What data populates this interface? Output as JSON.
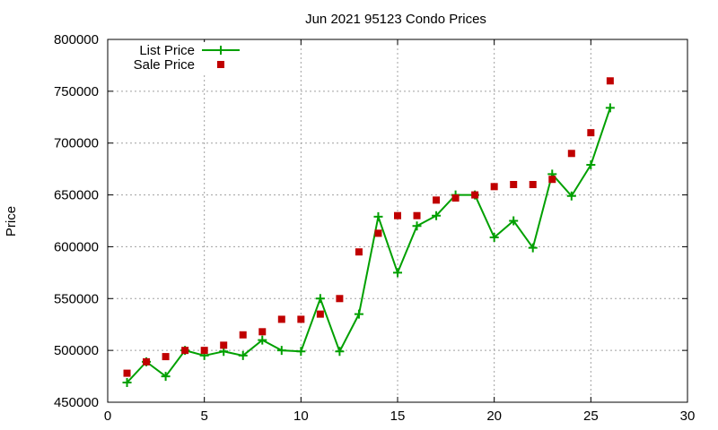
{
  "chart_data": {
    "type": "line",
    "title": "Jun 2021 95123 Condo Prices",
    "xlabel": "",
    "ylabel": "Price",
    "xlim": [
      0,
      30
    ],
    "ylim": [
      450000,
      800000
    ],
    "x_ticks": [
      0,
      5,
      10,
      15,
      20,
      25,
      30
    ],
    "y_ticks": [
      450000,
      500000,
      550000,
      600000,
      650000,
      700000,
      750000,
      800000
    ],
    "x_tick_labels": [
      "0",
      "5",
      "10",
      "15",
      "20",
      "25",
      "30"
    ],
    "y_tick_labels": [
      "450000",
      "500000",
      "550000",
      "600000",
      "650000",
      "700000",
      "750000",
      "800000"
    ],
    "grid": true,
    "legend_position": "top-left",
    "series": [
      {
        "name": "List Price",
        "kind": "line-with-plus-markers",
        "color": "#00a000",
        "x": [
          1,
          2,
          3,
          4,
          5,
          6,
          7,
          8,
          9,
          10,
          11,
          12,
          13,
          14,
          15,
          16,
          17,
          18,
          19,
          20,
          21,
          22,
          23,
          24,
          25,
          26
        ],
        "y": [
          469000,
          489000,
          475000,
          500000,
          495000,
          499000,
          495000,
          510000,
          500000,
          499000,
          550000,
          499000,
          535000,
          629000,
          575000,
          620000,
          630000,
          650000,
          650000,
          609000,
          625000,
          599000,
          670000,
          649000,
          679000,
          734000
        ]
      },
      {
        "name": "Sale Price",
        "kind": "square-markers",
        "color": "#c00000",
        "x": [
          1,
          2,
          3,
          4,
          5,
          6,
          7,
          8,
          9,
          10,
          11,
          12,
          13,
          14,
          15,
          16,
          17,
          18,
          19,
          20,
          21,
          22,
          23,
          24,
          25,
          26
        ],
        "y": [
          478000,
          489000,
          494000,
          500000,
          500000,
          505000,
          515000,
          518000,
          530000,
          530000,
          535000,
          550000,
          595000,
          613000,
          630000,
          630000,
          645000,
          647000,
          650000,
          658000,
          660000,
          660000,
          665000,
          690000,
          710000,
          760000
        ]
      }
    ]
  }
}
